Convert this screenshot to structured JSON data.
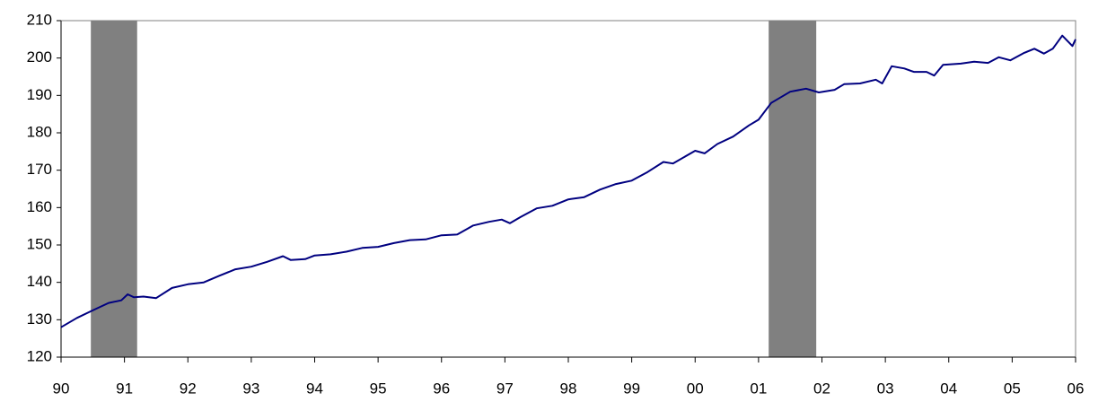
{
  "chart_data": {
    "type": "line",
    "xlim": [
      1990,
      2006
    ],
    "xticks": [
      {
        "value": 1990,
        "label": "90"
      },
      {
        "value": 1991,
        "label": "91"
      },
      {
        "value": 1992,
        "label": "92"
      },
      {
        "value": 1993,
        "label": "93"
      },
      {
        "value": 1994,
        "label": "94"
      },
      {
        "value": 1995,
        "label": "95"
      },
      {
        "value": 1996,
        "label": "96"
      },
      {
        "value": 1997,
        "label": "97"
      },
      {
        "value": 1998,
        "label": "98"
      },
      {
        "value": 1999,
        "label": "99"
      },
      {
        "value": 2000,
        "label": "00"
      },
      {
        "value": 2001,
        "label": "01"
      },
      {
        "value": 2002,
        "label": "02"
      },
      {
        "value": 2003,
        "label": "03"
      },
      {
        "value": 2004,
        "label": "04"
      },
      {
        "value": 2005,
        "label": "05"
      },
      {
        "value": 2006,
        "label": "06"
      }
    ],
    "ylim": [
      120,
      210
    ],
    "yticks": [
      120,
      130,
      140,
      150,
      160,
      170,
      180,
      190,
      200,
      210
    ],
    "shaded_ranges": [
      [
        1990.47,
        1991.2
      ],
      [
        2001.16,
        2001.91
      ]
    ],
    "shade_color": "#808080",
    "series": [
      {
        "color": "#000080",
        "x": [
          1990.0,
          1990.25,
          1990.5,
          1990.75,
          1990.95,
          1991.05,
          1991.15,
          1991.3,
          1991.5,
          1991.75,
          1992.0,
          1992.25,
          1992.5,
          1992.75,
          1993.0,
          1993.25,
          1993.5,
          1993.62,
          1993.85,
          1994.0,
          1994.25,
          1994.5,
          1994.75,
          1995.0,
          1995.25,
          1995.5,
          1995.75,
          1996.0,
          1996.25,
          1996.5,
          1996.75,
          1996.95,
          1997.08,
          1997.25,
          1997.5,
          1997.75,
          1998.0,
          1998.25,
          1998.5,
          1998.75,
          1999.0,
          1999.25,
          1999.5,
          1999.65,
          2000.0,
          2000.15,
          2000.35,
          2000.6,
          2000.85,
          2001.0,
          2001.2,
          2001.5,
          2001.75,
          2001.95,
          2002.2,
          2002.35,
          2002.6,
          2002.85,
          2002.95,
          2003.1,
          2003.3,
          2003.45,
          2003.65,
          2003.77,
          2003.91,
          2004.19,
          2004.4,
          2004.62,
          2004.79,
          2004.97,
          2005.18,
          2005.35,
          2005.5,
          2005.64,
          2005.79,
          2005.95,
          2006.0
        ],
        "values": [
          128,
          130.5,
          132.5,
          134.5,
          135.2,
          136.8,
          136,
          136.2,
          135.8,
          138.5,
          139.5,
          140,
          141.8,
          143.5,
          144.2,
          145.5,
          147,
          146,
          146.2,
          147.2,
          147.5,
          148.2,
          149.2,
          149.5,
          150.5,
          151.3,
          151.5,
          152.6,
          152.8,
          155.2,
          156.2,
          156.8,
          155.8,
          157.5,
          159.8,
          160.5,
          162.2,
          162.8,
          164.8,
          166.3,
          167.2,
          169.5,
          172.2,
          171.8,
          175.2,
          174.5,
          177,
          179,
          182,
          183.5,
          188,
          191,
          191.8,
          190.8,
          191.5,
          193,
          193.2,
          194.2,
          193.2,
          197.8,
          197.2,
          196.3,
          196.3,
          195.3,
          198.2,
          198.5,
          199,
          198.7,
          200.2,
          199.4,
          201.3,
          202.5,
          201.2,
          202.5,
          206,
          203.2,
          205
        ]
      }
    ]
  }
}
